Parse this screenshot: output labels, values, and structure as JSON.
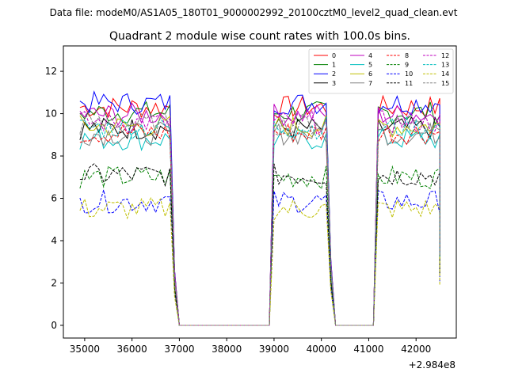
{
  "header": {
    "data_file": "Data file: modeM0/AS1A05_180T01_9000002992_20100cztM0_level2_quad_clean.evt"
  },
  "chart_data": {
    "type": "line",
    "title": "Quadrant 2 module wise count rates with 100.0s bins.",
    "xlabel": "",
    "ylabel": "",
    "x_offset_label": "+2.984e8",
    "xlim": [
      34550,
      42850
    ],
    "ylim": [
      -0.6,
      13.2
    ],
    "xticks": [
      35000,
      36000,
      37000,
      38000,
      39000,
      40000,
      41000,
      42000
    ],
    "yticks": [
      0,
      2,
      4,
      6,
      8,
      10,
      12
    ],
    "legend": {
      "position": "top-right",
      "columns": 4
    },
    "segments": [
      {
        "start": 34900,
        "end": 36800
      },
      {
        "start": 39000,
        "end": 40100
      },
      {
        "start": 41200,
        "end": 42500
      }
    ],
    "gaps": [
      {
        "from": 36800,
        "to": 37000
      },
      {
        "from": 37000,
        "to": 38900
      },
      {
        "from": 38900,
        "to": 39000
      },
      {
        "from": 40100,
        "to": 40300
      },
      {
        "from": 40300,
        "to": 41100
      },
      {
        "from": 41100,
        "to": 41200
      },
      {
        "from": 42500,
        "to": 42500
      }
    ],
    "series": [
      {
        "name": "0",
        "color": "#ff0000",
        "dash": false,
        "level": 10.3
      },
      {
        "name": "1",
        "color": "#008000",
        "dash": false,
        "level": 10.0
      },
      {
        "name": "2",
        "color": "#0000ff",
        "dash": false,
        "level": 10.4
      },
      {
        "name": "3",
        "color": "#000000",
        "dash": false,
        "level": 9.3
      },
      {
        "name": "4",
        "color": "#bf00bf",
        "dash": false,
        "level": 9.9
      },
      {
        "name": "5",
        "color": "#00bfbf",
        "dash": false,
        "level": 8.7
      },
      {
        "name": "6",
        "color": "#bfbf00",
        "dash": false,
        "level": 9.4
      },
      {
        "name": "7",
        "color": "#808080",
        "dash": false,
        "level": 9.0
      },
      {
        "name": "8",
        "color": "#ff0000",
        "dash": true,
        "level": 9.0
      },
      {
        "name": "9",
        "color": "#008000",
        "dash": true,
        "level": 7.0
      },
      {
        "name": "10",
        "color": "#0000ff",
        "dash": true,
        "level": 5.8
      },
      {
        "name": "11",
        "color": "#000000",
        "dash": true,
        "level": 7.0
      },
      {
        "name": "12",
        "color": "#bf00bf",
        "dash": true,
        "level": 9.6
      },
      {
        "name": "13",
        "color": "#00bfbf",
        "dash": true,
        "level": 9.3
      },
      {
        "name": "14",
        "color": "#bfbf00",
        "dash": true,
        "level": 5.4
      },
      {
        "name": "15",
        "color": "#808080",
        "dash": true,
        "level": 9.5
      }
    ]
  }
}
